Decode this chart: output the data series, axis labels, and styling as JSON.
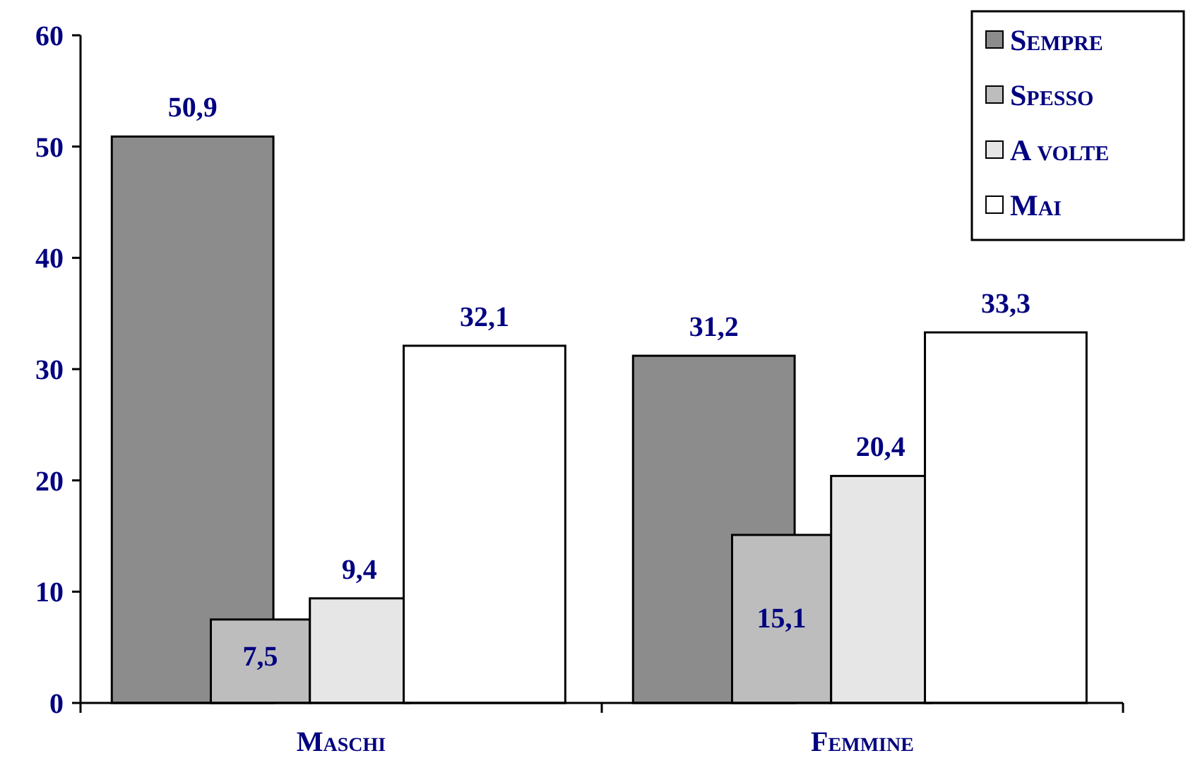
{
  "chart_data": {
    "type": "bar",
    "categories": [
      "Maschi",
      "Femmine"
    ],
    "series": [
      {
        "name": "Sempre",
        "color": "#8c8c8c",
        "values": [
          50.9,
          31.2
        ],
        "value_labels": [
          "50,9",
          "31,2"
        ]
      },
      {
        "name": "Spesso",
        "color": "#bdbdbd",
        "values": [
          7.5,
          15.1
        ],
        "value_labels": [
          "7,5",
          "15,1"
        ]
      },
      {
        "name": "A volte",
        "color": "#e6e6e6",
        "values": [
          9.4,
          20.4
        ],
        "value_labels": [
          "9,4",
          "20,4"
        ]
      },
      {
        "name": "Mai",
        "color": "#ffffff",
        "values": [
          32.1,
          33.3
        ],
        "value_labels": [
          "32,1",
          "33,3"
        ]
      }
    ],
    "ylim": [
      0,
      60
    ],
    "yticks": [
      0,
      10,
      20,
      30,
      40,
      50,
      60
    ],
    "grid": false,
    "legend": "top right"
  }
}
